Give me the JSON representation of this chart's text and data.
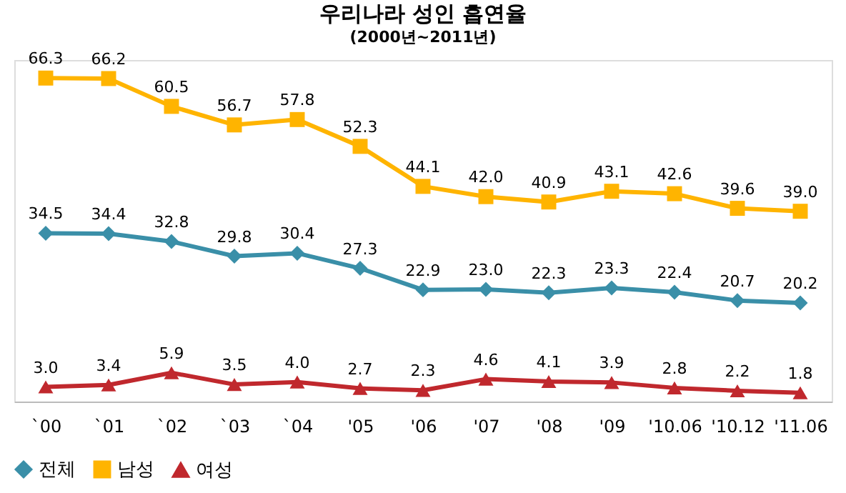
{
  "chart_data": {
    "type": "line",
    "title": "우리나라 성인 흡연율",
    "subtitle": "(2000년~2011년)",
    "categories": [
      "`00",
      "`01",
      "`02",
      "`03",
      "`04",
      "'05",
      "'06",
      "'07",
      "'08",
      "'09",
      "'10.06",
      "'10.12",
      "'11.06"
    ],
    "series": [
      {
        "name": "전체",
        "color": "#3a8fa8",
        "marker": "diamond",
        "values": [
          34.5,
          34.4,
          32.8,
          29.8,
          30.4,
          27.3,
          22.9,
          23.0,
          22.3,
          23.3,
          22.4,
          20.7,
          20.2
        ],
        "value_labels": [
          "34.5",
          "34.4",
          "32.8",
          "29.8",
          "30.4",
          "27.3",
          "22.9",
          "23.0",
          "22.3",
          "23.3",
          "22.4",
          "20.7",
          "20.2"
        ]
      },
      {
        "name": "남성",
        "color": "#ffb400",
        "marker": "square",
        "values": [
          66.3,
          66.2,
          60.5,
          56.7,
          57.8,
          52.3,
          44.1,
          42.0,
          40.9,
          43.1,
          42.6,
          39.6,
          39.0
        ],
        "value_labels": [
          "66.3",
          "66.2",
          "60.5",
          "56.7",
          "57.8",
          "52.3",
          "44.1",
          "42.0",
          "40.9",
          "43.1",
          "42.6",
          "39.6",
          "39.0"
        ]
      },
      {
        "name": "여성",
        "color": "#c0282d",
        "marker": "triangle",
        "values": [
          3.0,
          3.4,
          5.9,
          3.5,
          4.0,
          2.7,
          2.3,
          4.6,
          4.1,
          3.9,
          2.8,
          2.2,
          1.8
        ],
        "value_labels": [
          "3.0",
          "3.4",
          "5.9",
          "3.5",
          "4.0",
          "2.7",
          "2.3",
          "4.6",
          "4.1",
          "3.9",
          "2.8",
          "2.2",
          "1.8"
        ]
      }
    ],
    "legend": "bottom",
    "grid": false,
    "tick_labels": "x",
    "line_style": "solid"
  }
}
